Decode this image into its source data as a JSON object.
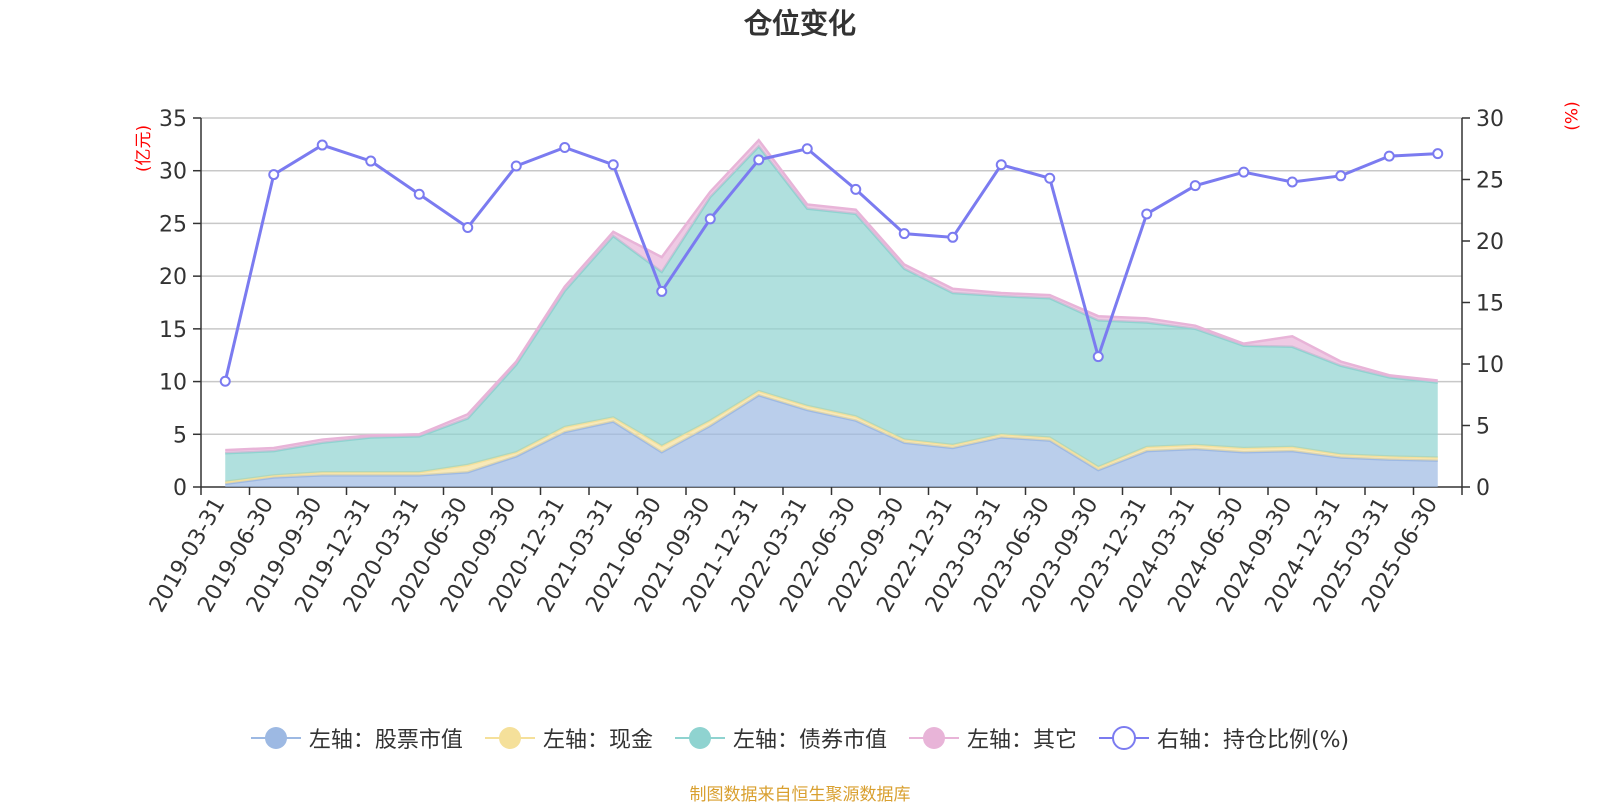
{
  "chart_data": {
    "type": "area",
    "title": "仓位变化",
    "y_left_unit": "(亿元)",
    "y_right_unit": "(%)",
    "y_left_range": [
      0,
      35
    ],
    "y_left_ticks": [
      "0",
      "5",
      "10",
      "15",
      "20",
      "25",
      "30",
      "35"
    ],
    "y_right_range": [
      0,
      30
    ],
    "y_right_ticks": [
      "0",
      "5",
      "10",
      "15",
      "20",
      "25",
      "30"
    ],
    "grid": true,
    "legend_position": "bottom",
    "categories": [
      "2019-03-31",
      "2019-06-30",
      "2019-09-30",
      "2019-12-31",
      "2020-03-31",
      "2020-06-30",
      "2020-09-30",
      "2020-12-31",
      "2021-03-31",
      "2021-06-30",
      "2021-09-30",
      "2021-12-31",
      "2022-03-31",
      "2022-06-30",
      "2022-09-30",
      "2022-12-31",
      "2023-03-31",
      "2023-06-30",
      "2023-09-30",
      "2023-12-31",
      "2024-03-31",
      "2024-06-30",
      "2024-09-30",
      "2024-12-31",
      "2025-03-31",
      "2025-06-30"
    ],
    "series": [
      {
        "name": "左轴：股票市值",
        "axis": "left",
        "stacked": true,
        "color": "#9db9e3",
        "values": [
          0.3,
          0.9,
          1.1,
          1.1,
          1.1,
          1.4,
          2.9,
          5.2,
          6.2,
          3.3,
          5.8,
          8.7,
          7.3,
          6.3,
          4.2,
          3.7,
          4.7,
          4.4,
          1.6,
          3.4,
          3.6,
          3.3,
          3.4,
          2.8,
          2.6,
          2.5
        ]
      },
      {
        "name": "左轴：现金",
        "axis": "left",
        "stacked": true,
        "color": "#f5e09a",
        "values": [
          0.2,
          0.2,
          0.3,
          0.3,
          0.3,
          0.7,
          0.4,
          0.5,
          0.4,
          0.6,
          0.5,
          0.4,
          0.4,
          0.4,
          0.3,
          0.3,
          0.3,
          0.3,
          0.3,
          0.4,
          0.4,
          0.4,
          0.4,
          0.3,
          0.3,
          0.3
        ]
      },
      {
        "name": "左轴：债券市值",
        "axis": "left",
        "stacked": true,
        "color": "#8fd3d0",
        "values": [
          2.7,
          2.3,
          2.8,
          3.3,
          3.4,
          4.4,
          8.3,
          12.9,
          17.2,
          16.5,
          21.2,
          23.2,
          18.7,
          19.2,
          16.2,
          14.4,
          13.1,
          13.2,
          13.9,
          11.8,
          11.0,
          9.7,
          9.5,
          8.4,
          7.5,
          7.1
        ]
      },
      {
        "name": "左轴：其它",
        "axis": "left",
        "stacked": true,
        "color": "#e8b4d8",
        "values": [
          0.3,
          0.3,
          0.3,
          0.2,
          0.2,
          0.4,
          0.3,
          0.4,
          0.4,
          1.4,
          0.5,
          0.6,
          0.4,
          0.4,
          0.4,
          0.4,
          0.3,
          0.3,
          0.4,
          0.4,
          0.3,
          0.2,
          1.0,
          0.4,
          0.2,
          0.2
        ]
      },
      {
        "name": "右轴：持仓比例(%)",
        "axis": "right",
        "type": "line",
        "color": "#7b7bf0",
        "values": [
          8.6,
          25.4,
          27.8,
          26.5,
          23.8,
          21.1,
          26.1,
          27.6,
          26.2,
          15.9,
          21.8,
          26.6,
          27.5,
          24.2,
          20.6,
          20.3,
          26.2,
          25.1,
          10.6,
          22.2,
          24.5,
          25.6,
          24.8,
          25.3,
          26.9,
          27.1
        ]
      }
    ]
  },
  "source_note": "制图数据来自恒生聚源数据库"
}
